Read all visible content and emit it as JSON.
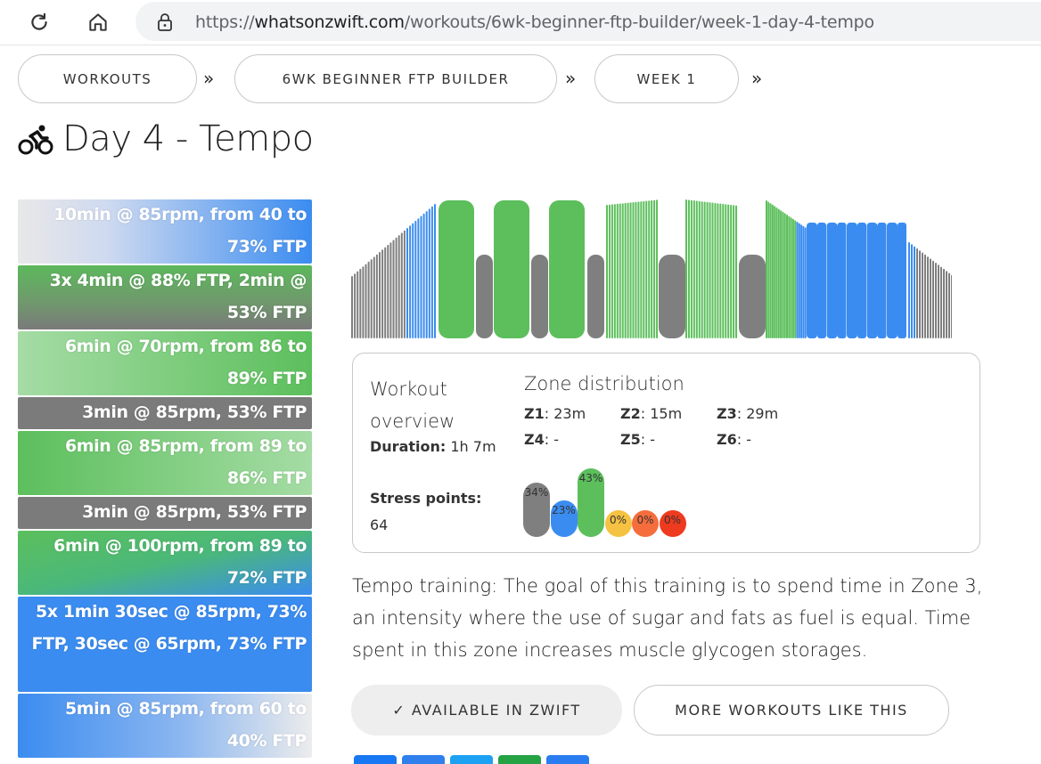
{
  "browser": {
    "url_scheme": "https://",
    "url_host": "whatsonzwift.com",
    "url_path": "/workouts/6wk-beginner-ftp-builder/week-1-day-4-tempo"
  },
  "breadcrumb": [
    {
      "label": "WORKOUTS"
    },
    {
      "label": "6WK BEGINNER FTP BUILDER"
    },
    {
      "label": "WEEK 1"
    }
  ],
  "breadcrumb_sep": "»",
  "title": "Day 4 - Tempo",
  "segments": [
    {
      "text": "10min @ 85rpm, from 40 to 73% FTP",
      "height": 72,
      "bg": "linear-gradient(to right, #e8e8e8 0%, #cfdaf0 30%, #3b8cf0 100%)"
    },
    {
      "text": "3x 4min @ 88% FTP, 2min @ 53% FTP",
      "height": 72,
      "bg": "linear-gradient(to bottom, #5cb85c 0%, #6f9a6c 55%, #7a7a7a 100%)"
    },
    {
      "text": "6min @ 70rpm, from 86 to 89% FTP",
      "height": 72,
      "bg": "linear-gradient(to right, #a5dca5 0%, #5cbf5c 100%)"
    },
    {
      "text": "3min @ 85rpm, 53% FTP",
      "height": 36,
      "bg": "#7b7b7b"
    },
    {
      "text": "6min @ 85rpm, from 89 to 86% FTP",
      "height": 72,
      "bg": "linear-gradient(to right, #5cbf5c 0%, #a5dca5 100%)"
    },
    {
      "text": "3min @ 85rpm, 53% FTP",
      "height": 36,
      "bg": "#7b7b7b"
    },
    {
      "text": "6min @ 100rpm, from 89 to 72% FTP",
      "height": 72,
      "bg": "linear-gradient(to bottom right, #5cbf5c 0%, #4ab87a 50%, #3b8cf0 100%)"
    },
    {
      "text": "5x 1min 30sec @ 85rpm, 73% FTP, 30sec @ 65rpm, 73% FTP",
      "height": 107,
      "bg": "#3b8cf0"
    },
    {
      "text": "5min @ 85rpm, from 60 to 40% FTP",
      "height": 72,
      "bg": "linear-gradient(to right, #3b8cf0 0%, #8bb6f0 55%, #ececec 100%)"
    }
  ],
  "overview": {
    "heading": "Workout overview",
    "duration_label": "Duration:",
    "duration_value": "1h 7m",
    "stress_label": "Stress points:",
    "stress_value": "64"
  },
  "zones": {
    "heading": "Zone distribution",
    "items": [
      {
        "label": "Z1",
        "value": "23m"
      },
      {
        "label": "Z2",
        "value": "15m"
      },
      {
        "label": "Z3",
        "value": "29m"
      },
      {
        "label": "Z4",
        "value": "-"
      },
      {
        "label": "Z5",
        "value": "-"
      },
      {
        "label": "Z6",
        "value": "-"
      }
    ],
    "bars": [
      {
        "pct": "34%",
        "fraction": 0.34,
        "color": "#7f7f7f"
      },
      {
        "pct": "23%",
        "fraction": 0.23,
        "color": "#3b8cf0"
      },
      {
        "pct": "43%",
        "fraction": 0.43,
        "color": "#5cbf5c"
      },
      {
        "pct": "0%",
        "fraction": 0,
        "color": "#f5c242"
      },
      {
        "pct": "0%",
        "fraction": 0,
        "color": "#f56d3c"
      },
      {
        "pct": "0%",
        "fraction": 0,
        "color": "#ee3a1e"
      }
    ]
  },
  "description": "Tempo training: The goal of this training is to spend time in Zone 3, an intensity where the use of sugar and fats as fuel is equal. Time spent in this zone increases muscle glycogen storages.",
  "buttons": {
    "available": "✓ AVAILABLE IN ZWIFT",
    "more": "MORE WORKOUTS LIKE THIS"
  },
  "colors": {
    "z1": "#7f7f7f",
    "z2": "#3b8cf0",
    "z3": "#5cbf5c"
  }
}
